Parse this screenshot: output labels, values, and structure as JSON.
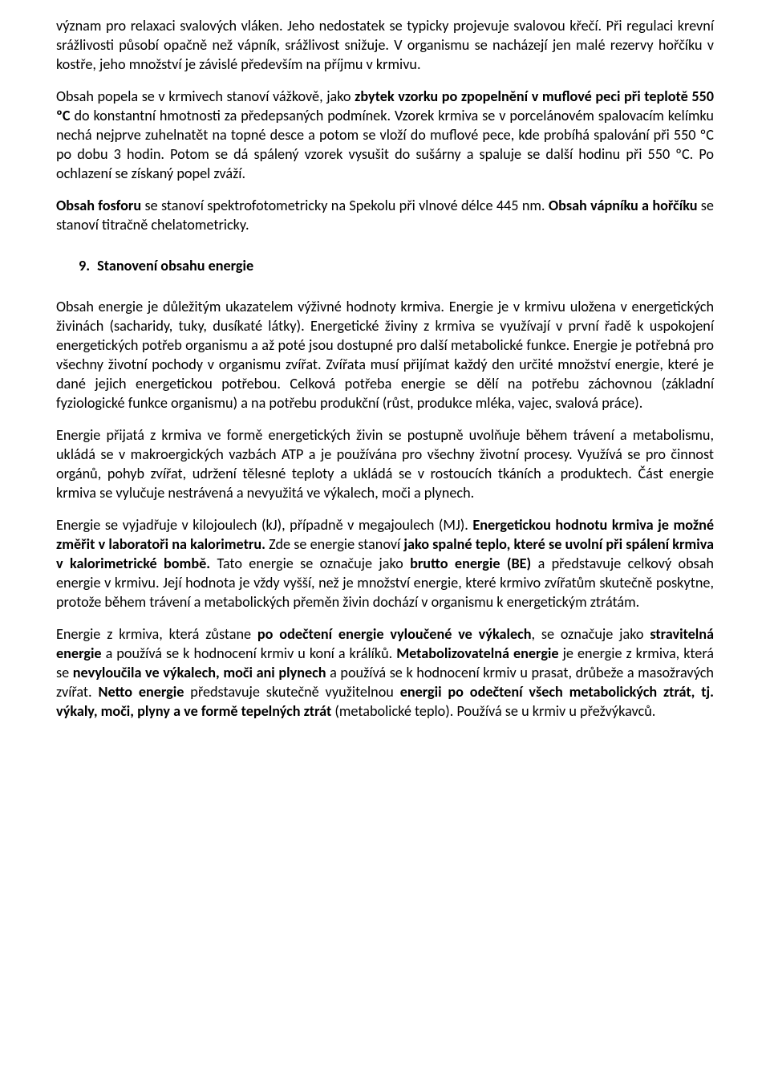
{
  "doc": {
    "background": "#ffffff",
    "text_color": "#000000",
    "font_size_pt": 14,
    "paragraphs": {
      "p1a": "význam pro relaxaci svalových vláken. Jeho nedostatek se typicky projevuje svalovou křečí. Při regulaci krevní srážlivosti působí opačně než vápník, srážlivost snižuje. V organismu se nacházejí jen malé rezervy hořčíku v kostře, jeho množství je závislé především na příjmu v krmivu.",
      "p2a": "Obsah popela se v krmivech stanoví vážkově, jako ",
      "p2b": "zbytek vzorku po zpopelnění v muflové peci při teplotě 550 ºC",
      "p2c": " do konstantní hmotnosti za předepsaných podmínek. Vzorek krmiva se v porcelánovém spalovacím kelímku nechá nejprve zuhelnatět na topné desce a potom se vloží do muflové pece, kde probíhá spalování při 550 ºC po dobu 3 hodin. Potom se dá spálený vzorek vysušit do sušárny a spaluje se další hodinu při 550 ºC. Po ochlazení se získaný popel zváží.",
      "p3a": "Obsah fosforu",
      "p3b": " se stanoví spektrofotometricky na Spekolu při vlnové délce 445 nm. ",
      "p3c": "Obsah vápníku a hořčíku",
      "p3d": " se stanoví titračně chelatometricky.",
      "heading": "9. Stanovení obsahu energie",
      "p4": "Obsah energie je důležitým ukazatelem výživné hodnoty krmiva. Energie je v krmivu uložena v energetických živinách (sacharidy, tuky, dusíkaté látky). Energetické živiny z krmiva se využívají v první řadě k uspokojení energetických potřeb organismu a až poté jsou dostupné pro další metabolické funkce. Energie je potřebná pro všechny životní pochody v organismu zvířat. Zvířata musí přijímat každý den určité množství energie, které je dané jejich energetickou potřebou. Celková potřeba energie se dělí na potřebu záchovnou (základní fyziologické funkce organismu) a na potřebu produkční (růst, produkce mléka, vajec, svalová práce).",
      "p5": "Energie přijatá z krmiva ve formě energetických živin se postupně uvolňuje během trávení a metabolismu, ukládá se v makroergických vazbách ATP a je používána pro všechny životní procesy. Využívá se pro činnost orgánů, pohyb zvířat, udržení tělesné teploty a ukládá se v rostoucích tkáních a produktech. Část energie krmiva se vylučuje nestrávená a nevyužitá ve výkalech, moči a plynech.",
      "p6a": "Energie se vyjadřuje v kilojoulech (kJ), případně v megajoulech (MJ). ",
      "p6b": "Energetickou hodnotu krmiva je možné změřit v laboratoři na kalorimetru.",
      "p6c": " Zde se energie stanoví ",
      "p6d": "jako spalné teplo, které se uvolní při spálení krmiva v kalorimetrické bombě.",
      "p6e": " Tato energie se označuje jako ",
      "p6f": "brutto energie (BE)",
      "p6g": " a představuje celkový obsah energie v krmivu. Její hodnota je vždy vyšší, než je množství energie, které krmivo zvířatům skutečně poskytne, protože během trávení a metabolických přeměn živin dochází v organismu k energetickým ztrátám.",
      "p7a": "Energie z krmiva, která zůstane ",
      "p7b": "po odečtení energie vyloučené ve výkalech",
      "p7c": ", se označuje jako ",
      "p7d": "stravitelná energie",
      "p7e": " a používá se k hodnocení krmiv u koní a králíků. ",
      "p7f": "Metabolizovatelná energie",
      "p7g": " je energie z krmiva, která se ",
      "p7h": "nevyloučila ve výkalech, moči ani plynech",
      "p7i": " a používá se k hodnocení krmiv u prasat, drůbeže a masožravých zvířat. ",
      "p7j": "Netto energie",
      "p7k": " představuje skutečně využitelnou ",
      "p7l": "energii po odečtení všech metabolických ztrát, tj. výkaly, moči, plyny a ve formě tepelných ztrát",
      "p7m": " (metabolické teplo). Používá se u krmiv u přežvýkavců."
    }
  }
}
